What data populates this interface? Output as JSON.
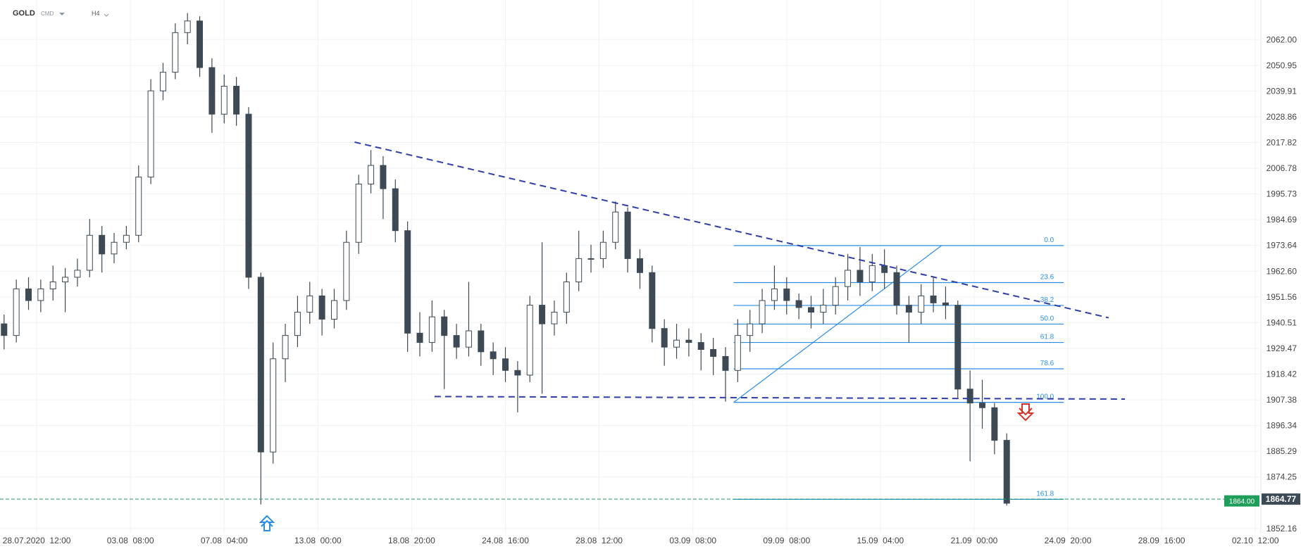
{
  "header": {
    "symbol": "GOLD",
    "market": "CMD",
    "interval": "H4"
  },
  "chart_data": {
    "type": "candlestick",
    "x": [
      -8,
      -5,
      -2,
      1,
      4,
      7,
      10,
      13,
      16,
      19,
      22,
      25,
      28,
      31,
      34,
      37,
      40,
      43,
      46,
      49,
      52,
      55,
      58,
      61,
      64,
      67,
      70,
      73,
      76,
      79,
      82,
      85,
      88,
      91,
      94,
      97,
      100,
      103,
      106,
      109,
      112,
      115,
      118,
      121,
      124,
      127,
      130,
      133,
      136,
      139,
      142,
      145,
      148,
      151,
      154,
      157,
      160,
      163,
      166,
      169,
      172,
      175,
      178,
      181,
      184,
      187,
      190,
      193,
      196,
      199,
      202,
      205,
      208,
      211,
      214,
      217,
      220,
      223,
      226,
      229,
      232,
      235,
      238
    ],
    "open": [
      1940,
      1935,
      1955,
      1950,
      1955,
      1958,
      1960,
      1963,
      1978,
      1970,
      1975,
      1978,
      2003,
      2040,
      2048,
      2065,
      2070,
      2050,
      2030,
      2042,
      2030,
      1960,
      1885,
      1925,
      1935,
      1945,
      1952,
      1942,
      1950,
      1975,
      2000,
      2008,
      1998,
      1980,
      1936,
      1932,
      1943,
      1935,
      1930,
      1937,
      1928,
      1925,
      1920,
      1918,
      1948,
      1940,
      1945,
      1958,
      1968,
      1968,
      1975,
      1988,
      1968,
      1962,
      1938,
      1930,
      1933,
      1932,
      1929,
      1926,
      1920,
      1935,
      1940,
      1950,
      1955,
      1950,
      1947,
      1945,
      1948,
      1956,
      1963,
      1958,
      1965,
      1962,
      1948,
      1945,
      1952,
      1949,
      1948,
      1912,
      1906,
      1904,
      1890
    ],
    "high": [
      1944,
      1959,
      1960,
      1959,
      1965,
      1964,
      1968,
      1985,
      1982,
      1979,
      1982,
      2008,
      2045,
      2052,
      2069,
      2073.4,
      2072,
      2054,
      2047,
      2046,
      2033,
      1962,
      1932,
      1940,
      1952,
      1958,
      1955,
      1955,
      1980,
      2004,
      2014.6,
      2012,
      2002,
      1984,
      1945,
      1950,
      1946,
      1940,
      1958,
      1940,
      1932,
      1930,
      1924,
      1952,
      1975,
      1950,
      1962,
      1980,
      1974,
      1980,
      1992.5,
      1990,
      1972,
      1965,
      1942,
      1940,
      1938,
      1936,
      1934,
      1930,
      1942,
      1946,
      1955,
      1965,
      1960,
      1953,
      1952,
      1955,
      1960,
      1970,
      1973,
      1970,
      1972,
      1965,
      1952,
      1957,
      1960,
      1956,
      1950,
      1920,
      1916,
      1906,
      1893
    ],
    "low": [
      1929,
      1932,
      1946,
      1945,
      1950,
      1945,
      1956,
      1960,
      1962,
      1966,
      1972,
      1975,
      2000,
      2036,
      2045,
      2060,
      2046,
      2022,
      2026,
      2025,
      1955,
      1862.5,
      1880,
      1915,
      1930,
      1940,
      1935,
      1938,
      1946,
      1970,
      1996,
      1985,
      1975,
      1928,
      1926,
      1928,
      1912,
      1925,
      1926,
      1922,
      1918,
      1915,
      1902,
      1915,
      1910,
      1935,
      1940,
      1954,
      1962,
      1964,
      1972,
      1962,
      1955,
      1932,
      1922,
      1925,
      1926,
      1920,
      1918,
      1906.6,
      1915,
      1928,
      1936,
      1946,
      1944,
      1942,
      1938,
      1940,
      1944,
      1950,
      1952,
      1954,
      1955,
      1944,
      1932,
      1940,
      1945,
      1942,
      1908,
      1881,
      1895,
      1884,
      1862
    ],
    "close": [
      1935,
      1955,
      1950,
      1955,
      1958,
      1960,
      1963,
      1978,
      1970,
      1975,
      1978,
      2003,
      2040,
      2048,
      2065,
      2070,
      2050,
      2030,
      2042,
      2030,
      1960,
      1885,
      1925,
      1935,
      1945,
      1952,
      1942,
      1950,
      1975,
      2000,
      2008,
      1998,
      1980,
      1936,
      1932,
      1943,
      1935,
      1930,
      1937,
      1928,
      1925,
      1920,
      1918,
      1948,
      1940,
      1945,
      1958,
      1968,
      1968,
      1975,
      1988,
      1968,
      1962,
      1938,
      1930,
      1933,
      1932,
      1929,
      1926,
      1920,
      1935,
      1940,
      1950,
      1955,
      1950,
      1947,
      1945,
      1948,
      1956,
      1963,
      1958,
      1965,
      1962,
      1948,
      1945,
      1952,
      1949,
      1948,
      1912,
      1906,
      1904,
      1890,
      1863
    ],
    "up_color": "#ffffff",
    "down_color": "#3d4a55",
    "wick_color": "#3d4a55",
    "xlim": [
      -9,
      300
    ],
    "ylim": [
      1850,
      2079
    ],
    "xticks": [
      {
        "value": 0,
        "label": "28.07.2020  12:00"
      },
      {
        "value": 23,
        "label": "03.08  08:00"
      },
      {
        "value": 46,
        "label": "07.08  04:00"
      },
      {
        "value": 69,
        "label": "13.08  00:00"
      },
      {
        "value": 92,
        "label": "18.08  20:00"
      },
      {
        "value": 115,
        "label": "24.08  16:00"
      },
      {
        "value": 138,
        "label": "28.08  12:00"
      },
      {
        "value": 161,
        "label": "03.09  08:00"
      },
      {
        "value": 184,
        "label": "09.09  08:00"
      },
      {
        "value": 207,
        "label": "15.09  04:00"
      },
      {
        "value": 230,
        "label": "21.09  00:00"
      },
      {
        "value": 253,
        "label": "24.09  20:00"
      },
      {
        "value": 276,
        "label": "28.09  16:00"
      },
      {
        "value": 299,
        "label": "02.10  12:00"
      }
    ],
    "yticks": [
      {
        "value": 2062,
        "label": "2062.00"
      },
      {
        "value": 2050.95,
        "label": "2050.95"
      },
      {
        "value": 2039.91,
        "label": "2039.91"
      },
      {
        "value": 2028.86,
        "label": "2028.86"
      },
      {
        "value": 2017.82,
        "label": "2017.82"
      },
      {
        "value": 2006.78,
        "label": "2006.78"
      },
      {
        "value": 1995.73,
        "label": "1995.73"
      },
      {
        "value": 1984.69,
        "label": "1984.69"
      },
      {
        "value": 1973.64,
        "label": "1973.64"
      },
      {
        "value": 1962.6,
        "label": "1962.60"
      },
      {
        "value": 1951.56,
        "label": "1951.56"
      },
      {
        "value": 1940.51,
        "label": "1940.51"
      },
      {
        "value": 1929.47,
        "label": "1929.47"
      },
      {
        "value": 1918.42,
        "label": "1918.42"
      },
      {
        "value": 1907.38,
        "label": "1907.38"
      },
      {
        "value": 1896.34,
        "label": "1896.34"
      },
      {
        "value": 1885.29,
        "label": "1885.29"
      },
      {
        "value": 1874.25,
        "label": "1874.25"
      },
      {
        "value": 1852.16,
        "label": "1852.16"
      }
    ],
    "grid": true,
    "trendlines": [
      {
        "color": "#2f3fa8",
        "x": [
          78,
          263
        ],
        "y": [
          2018,
          1942.6
        ]
      },
      {
        "color": "#2f3fa8",
        "x": [
          97.6,
          267
        ],
        "y": [
          1908.8,
          1907.7
        ]
      }
    ],
    "fib": {
      "color": "#2a8ee6",
      "x": [
        171,
        252
      ],
      "diagonal_x": [
        171,
        222
      ],
      "levels": [
        {
          "label": "0.0",
          "price": 1973.6
        },
        {
          "label": "23.6",
          "price": 1957.7
        },
        {
          "label": "38.2",
          "price": 1947.9
        },
        {
          "label": "50.0",
          "price": 1939.9
        },
        {
          "label": "61.8",
          "price": 1932
        },
        {
          "label": "78.6",
          "price": 1920.7
        },
        {
          "label": "100.0",
          "price": 1906.3
        },
        {
          "label": "161.8",
          "price": 1864.7
        }
      ]
    },
    "price_tags": [
      {
        "value": 1864,
        "label": "1864.00",
        "color": "#1e9e5a"
      },
      {
        "value": 1864.77,
        "label": "1864.77",
        "color": "#3d4a55"
      }
    ]
  }
}
